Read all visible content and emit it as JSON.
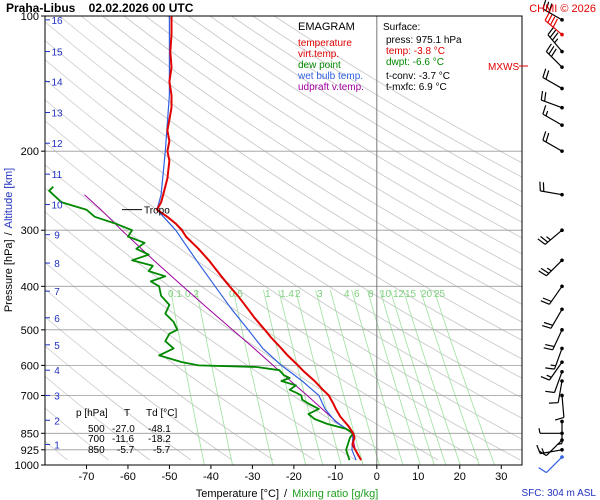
{
  "chart_data": {
    "type": "line",
    "title": "Praha-Libus    02.02.2026 00 UTC",
    "copyright": "CHMI © 2026",
    "xlabel": "Temperature [°C]",
    "xlabel_sep": "/",
    "xlabel2": "Mixing ratio [g/kg]",
    "ylabel": "Pressure [hPa]",
    "ylabel_sep": "/",
    "ylabel2": "Altitude [km]",
    "xlim": [
      -80,
      35
    ],
    "x_ticks": [
      -70,
      -60,
      -50,
      -40,
      -30,
      -20,
      -10,
      0,
      10,
      20,
      30
    ],
    "y_axis": "log",
    "ylim": [
      1000,
      100
    ],
    "pressure_ticks": [
      100,
      200,
      300,
      400,
      500,
      600,
      700,
      850,
      925,
      1000
    ],
    "grid_pressures": [
      200,
      300,
      400,
      500,
      600,
      700,
      850,
      925
    ],
    "altitude_ticks": [
      {
        "label": "1",
        "p": 900
      },
      {
        "label": "2",
        "p": 795
      },
      {
        "label": "3",
        "p": 700
      },
      {
        "label": "4",
        "p": 615
      },
      {
        "label": "5",
        "p": 540
      },
      {
        "label": "6",
        "p": 470
      },
      {
        "label": "7",
        "p": 410
      },
      {
        "label": "8",
        "p": 355
      },
      {
        "label": "9",
        "p": 307
      },
      {
        "label": "10",
        "p": 263
      },
      {
        "label": "11",
        "p": 225
      },
      {
        "label": "12",
        "p": 192
      },
      {
        "label": "13",
        "p": 164
      },
      {
        "label": "14",
        "p": 140
      },
      {
        "label": "15",
        "p": 120
      },
      {
        "label": "16",
        "p": 102
      }
    ],
    "mixing_ratio_labels": [
      "0.5",
      "1",
      "1.4",
      "2",
      "3",
      "4",
      "6",
      "8",
      "10",
      "12",
      "15",
      "20",
      "25"
    ],
    "mixing_ratio_labels_left": [
      "0.1",
      "0.2"
    ],
    "legend": {
      "title": "EMAGRAM",
      "items": [
        {
          "label": "temperature",
          "color": "#e00000"
        },
        {
          "label": "virt.temp.",
          "color": "#e00000"
        },
        {
          "label": "dew point",
          "color": "#008800"
        },
        {
          "label": "wet bulb temp.",
          "color": "#3060e0"
        },
        {
          "label": "udpraft v.temp.",
          "color": "#a000a0"
        }
      ]
    },
    "surface": {
      "title": "Surface:",
      "rows": [
        {
          "text": "press: 975.1 hPa",
          "color": "#000000"
        },
        {
          "text": "temp: -3.8 °C",
          "color": "#e00000"
        },
        {
          "text": "dwpt: -6.6 °C",
          "color": "#008800"
        },
        {
          "text": "t-conv: -3.7 °C",
          "color": "#000000"
        },
        {
          "text": "t-mxfc: 6.9 °C",
          "color": "#000000"
        }
      ]
    },
    "table": {
      "headers": [
        "p [hPa]",
        "T",
        "Td [°C]"
      ],
      "rows": [
        [
          "500",
          "-27.0",
          "-48.1"
        ],
        [
          "700",
          "-11.6",
          "-18.2"
        ],
        [
          "850",
          "-5.7",
          "-5.7"
        ]
      ]
    },
    "tropo_label": "Tropo",
    "tropo_pressure": 270,
    "mxws_label": "MXWS",
    "sfc_label": "SFC: 304 m ASL",
    "series": [
      {
        "name": "temperature",
        "color": "#e00000",
        "points": [
          [
            975,
            -3.8
          ],
          [
            950,
            -4.5
          ],
          [
            925,
            -5.2
          ],
          [
            900,
            -5.9
          ],
          [
            870,
            -5.4
          ],
          [
            850,
            -5.7
          ],
          [
            820,
            -6.8
          ],
          [
            800,
            -7.8
          ],
          [
            780,
            -8.8
          ],
          [
            750,
            -9.9
          ],
          [
            730,
            -10.5
          ],
          [
            700,
            -11.6
          ],
          [
            680,
            -13.0
          ],
          [
            650,
            -15.0
          ],
          [
            620,
            -17.5
          ],
          [
            600,
            -19.0
          ],
          [
            570,
            -21.5
          ],
          [
            550,
            -23.0
          ],
          [
            520,
            -25.5
          ],
          [
            500,
            -27.0
          ],
          [
            470,
            -29.5
          ],
          [
            450,
            -31.0
          ],
          [
            420,
            -33.5
          ],
          [
            400,
            -35.5
          ],
          [
            380,
            -37.5
          ],
          [
            350,
            -40.5
          ],
          [
            330,
            -43.0
          ],
          [
            310,
            -46.0
          ],
          [
            300,
            -47.0
          ],
          [
            290,
            -48.5
          ],
          [
            280,
            -50.5
          ],
          [
            270,
            -53.0
          ],
          [
            260,
            -52.0
          ],
          [
            250,
            -51.5
          ],
          [
            230,
            -50.5
          ],
          [
            210,
            -50.0
          ],
          [
            200,
            -50.5
          ],
          [
            190,
            -50.0
          ],
          [
            180,
            -50.5
          ],
          [
            170,
            -50.0
          ],
          [
            160,
            -49.5
          ],
          [
            150,
            -49.5
          ],
          [
            140,
            -50.0
          ],
          [
            130,
            -49.5
          ],
          [
            120,
            -49.8
          ],
          [
            110,
            -49.5
          ],
          [
            100,
            -49.5
          ]
        ]
      },
      {
        "name": "dew point",
        "color": "#008800",
        "points": [
          [
            975,
            -6.6
          ],
          [
            950,
            -7.0
          ],
          [
            925,
            -7.4
          ],
          [
            900,
            -7.0
          ],
          [
            870,
            -6.5
          ],
          [
            850,
            -5.7
          ],
          [
            830,
            -7.5
          ],
          [
            810,
            -12.0
          ],
          [
            790,
            -15.0
          ],
          [
            770,
            -16.5
          ],
          [
            750,
            -14.0
          ],
          [
            730,
            -16.5
          ],
          [
            715,
            -18.0
          ],
          [
            700,
            -18.2
          ],
          [
            690,
            -19.5
          ],
          [
            680,
            -21.0
          ],
          [
            665,
            -19.5
          ],
          [
            650,
            -23.0
          ],
          [
            640,
            -21.0
          ],
          [
            630,
            -22.5
          ],
          [
            615,
            -23.5
          ],
          [
            605,
            -29.0
          ],
          [
            600,
            -43.0
          ],
          [
            590,
            -47.0
          ],
          [
            570,
            -52.5
          ],
          [
            550,
            -49.0
          ],
          [
            530,
            -51.0
          ],
          [
            510,
            -50.0
          ],
          [
            500,
            -48.1
          ],
          [
            480,
            -49.0
          ],
          [
            460,
            -51.0
          ],
          [
            440,
            -50.0
          ],
          [
            420,
            -52.0
          ],
          [
            400,
            -52.5
          ],
          [
            390,
            -54.5
          ],
          [
            380,
            -51.0
          ],
          [
            370,
            -55.0
          ],
          [
            360,
            -54.0
          ],
          [
            350,
            -59.0
          ],
          [
            340,
            -55.0
          ],
          [
            330,
            -58.0
          ],
          [
            320,
            -56.0
          ],
          [
            310,
            -60.0
          ],
          [
            300,
            -59.0
          ],
          [
            290,
            -63.0
          ],
          [
            280,
            -68.0
          ],
          [
            270,
            -70.0
          ],
          [
            260,
            -76.0
          ],
          [
            250,
            -78.0
          ],
          [
            245,
            -79.0
          ],
          [
            240,
            -78.0
          ]
        ]
      },
      {
        "name": "wet bulb temp.",
        "color": "#3060e0",
        "points": [
          [
            975,
            -5.0
          ],
          [
            925,
            -6.0
          ],
          [
            850,
            -5.7
          ],
          [
            800,
            -10.0
          ],
          [
            750,
            -12.5
          ],
          [
            700,
            -14.0
          ],
          [
            650,
            -18.0
          ],
          [
            600,
            -23.0
          ],
          [
            550,
            -27.5
          ],
          [
            500,
            -31.0
          ],
          [
            450,
            -35.0
          ],
          [
            400,
            -39.0
          ],
          [
            350,
            -43.5
          ],
          [
            300,
            -48.5
          ],
          [
            270,
            -53.0
          ],
          [
            250,
            -52.0
          ],
          [
            200,
            -51.0
          ],
          [
            150,
            -50.0
          ],
          [
            100,
            -50.0
          ]
        ]
      },
      {
        "name": "udpraft v.temp.",
        "color": "#a000a0",
        "points": [
          [
            975,
            -3.8
          ],
          [
            925,
            -5.2
          ],
          [
            850,
            -6.0
          ],
          [
            800,
            -9.8
          ],
          [
            750,
            -13.2
          ],
          [
            700,
            -16.8
          ],
          [
            650,
            -20.8
          ],
          [
            600,
            -25.0
          ],
          [
            550,
            -29.6
          ],
          [
            500,
            -34.8
          ],
          [
            450,
            -40.5
          ],
          [
            400,
            -46.8
          ],
          [
            350,
            -53.8
          ],
          [
            300,
            -61.5
          ],
          [
            270,
            -66.5
          ],
          [
            250,
            -70.5
          ]
        ]
      }
    ],
    "wind_barbs": [
      {
        "p": 960,
        "dir": 225,
        "spd": 10,
        "color": "#3060e0"
      },
      {
        "p": 925,
        "dir": 260,
        "spd": 15
      },
      {
        "p": 880,
        "dir": 225,
        "spd": 10
      },
      {
        "p": 850,
        "dir": 270,
        "spd": 5
      },
      {
        "p": 800,
        "dir": 180,
        "spd": 5
      },
      {
        "p": 700,
        "dir": 175,
        "spd": 10
      },
      {
        "p": 650,
        "dir": 190,
        "spd": 10
      },
      {
        "p": 620,
        "dir": 200,
        "spd": 10
      },
      {
        "p": 590,
        "dir": 215,
        "spd": 15
      },
      {
        "p": 550,
        "dir": 200,
        "spd": 15
      },
      {
        "p": 500,
        "dir": 205,
        "spd": 20
      },
      {
        "p": 450,
        "dir": 210,
        "spd": 20
      },
      {
        "p": 400,
        "dir": 215,
        "spd": 20
      },
      {
        "p": 350,
        "dir": 225,
        "spd": 25
      },
      {
        "p": 300,
        "dir": 230,
        "spd": 25
      },
      {
        "p": 250,
        "dir": 280,
        "spd": 20
      },
      {
        "p": 200,
        "dir": 300,
        "spd": 20
      },
      {
        "p": 175,
        "dir": 300,
        "spd": 15
      },
      {
        "p": 160,
        "dir": 290,
        "spd": 20
      },
      {
        "p": 145,
        "dir": 300,
        "spd": 20
      },
      {
        "p": 130,
        "dir": 315,
        "spd": 30
      },
      {
        "p": 120,
        "dir": 320,
        "spd": 35
      },
      {
        "p": 110,
        "dir": 310,
        "spd": 40,
        "color": "#e00000"
      },
      {
        "p": 102,
        "dir": 300,
        "spd": 30
      }
    ]
  }
}
